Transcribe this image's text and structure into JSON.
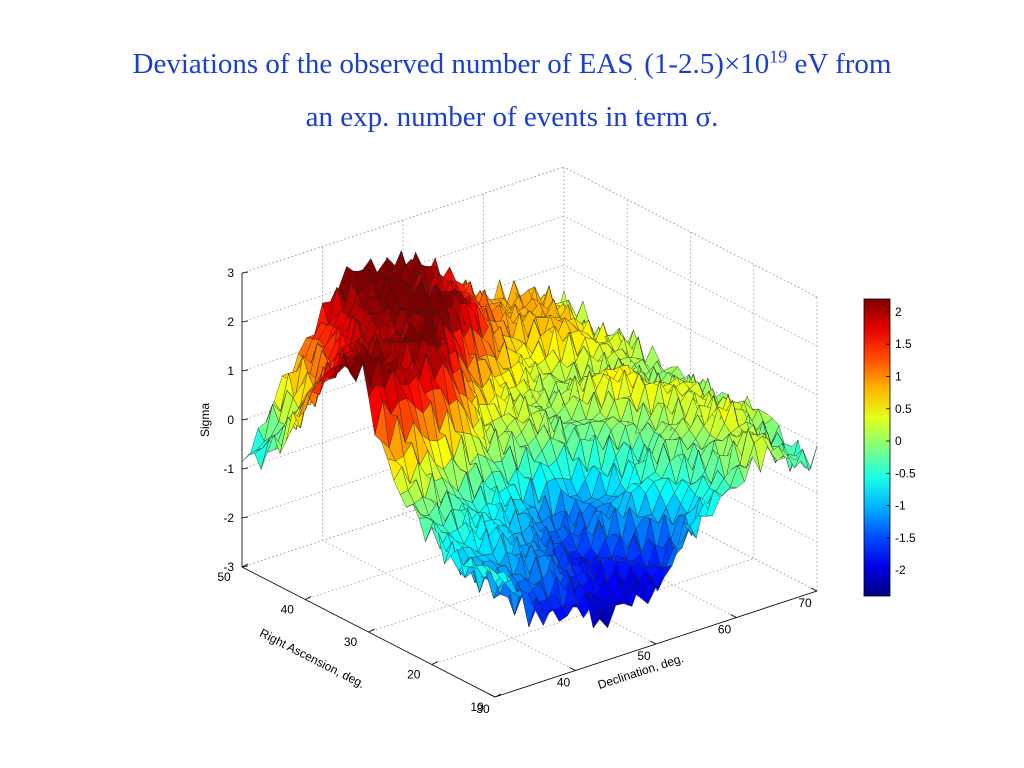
{
  "slide": {
    "title_line1_a": "Deviations of the observed number of EAS",
    "title_dot": ".",
    "title_line1_b": " (1-2.5)×10",
    "title_exponent": "19",
    "title_line1_c": " eV from",
    "title_line2": "an exp. number of events  in term σ."
  },
  "chart_data": {
    "type": "surface",
    "xlabel": "Declination, deg.",
    "ylabel": "Right Ascension, deg.",
    "zlabel": "Sigma",
    "xlim": [
      30,
      70
    ],
    "ylim": [
      10,
      50
    ],
    "zlim": [
      -3,
      3
    ],
    "x_ticks": [
      "30",
      "40",
      "50",
      "60",
      "70"
    ],
    "y_ticks": [
      "10",
      "20",
      "30",
      "40",
      "50"
    ],
    "z_ticks": [
      "-3",
      "-2",
      "-1",
      "0",
      "1",
      "2",
      "3"
    ],
    "colorbar_ticks": [
      "2",
      "1.5",
      "1",
      "0.5",
      "0",
      "-0.5",
      "-1",
      "-1.5",
      "-2"
    ],
    "colorbar_range": [
      -2.4,
      2.2
    ],
    "colormap": "jet",
    "grid": true,
    "peaks": [
      {
        "x": 33,
        "y": 36,
        "z": 3.0,
        "note": "highest peak"
      },
      {
        "x": 40,
        "y": 42,
        "z": 2.9
      },
      {
        "x": 47,
        "y": 47,
        "z": 2.5
      },
      {
        "x": 60,
        "y": 45,
        "z": 0.9
      },
      {
        "x": 63,
        "y": 22,
        "z": 0.6
      },
      {
        "x": 38,
        "y": 20,
        "z": -0.2
      }
    ],
    "troughs": [
      {
        "x": 42,
        "y": 13,
        "z": -2.4,
        "note": "deepest trough"
      },
      {
        "x": 50,
        "y": 18,
        "z": -1.6
      },
      {
        "x": 30,
        "y": 46,
        "z": -1.4
      }
    ]
  }
}
